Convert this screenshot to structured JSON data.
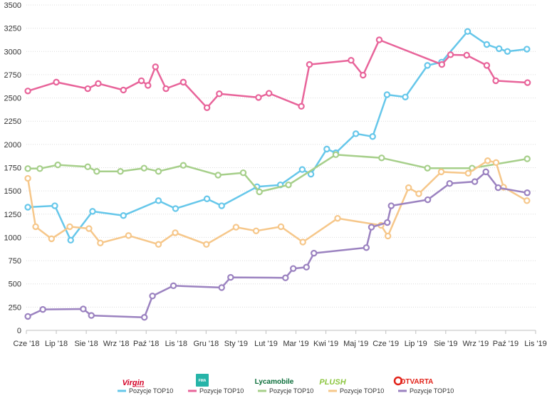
{
  "chart_data": {
    "type": "line",
    "ylim": [
      0,
      3500
    ],
    "yticks": [
      0,
      250,
      500,
      750,
      1000,
      1250,
      1500,
      1750,
      2000,
      2250,
      2500,
      2750,
      3000,
      3250,
      3500
    ],
    "xlim": [
      0,
      17
    ],
    "xticks": [
      {
        "label": "Cze '18",
        "x": 0
      },
      {
        "label": "Lip '18",
        "x": 1
      },
      {
        "label": "Sie '18",
        "x": 2
      },
      {
        "label": "Wrz '18",
        "x": 3
      },
      {
        "label": "Paź '18",
        "x": 4
      },
      {
        "label": "Lis '18",
        "x": 5
      },
      {
        "label": "Gru '18",
        "x": 6
      },
      {
        "label": "Sty '19",
        "x": 7
      },
      {
        "label": "Lut '19",
        "x": 8
      },
      {
        "label": "Mar '19",
        "x": 9
      },
      {
        "label": "Kwi '19",
        "x": 10
      },
      {
        "label": "Maj '19",
        "x": 11
      },
      {
        "label": "Cze '19",
        "x": 12
      },
      {
        "label": "Lip '19",
        "x": 13
      },
      {
        "label": "Sie '19",
        "x": 14
      },
      {
        "label": "Wrz '19",
        "x": 15
      },
      {
        "label": "Paź '19",
        "x": 16
      },
      {
        "label": "Lis '19",
        "x": 17
      }
    ],
    "grid": "horizontal",
    "legend_position": "bottom",
    "series": [
      {
        "name": "Pozycje TOP10",
        "brand": "Virgin mobile",
        "color": "#66c7ea",
        "x": [
          0.05,
          0.95,
          1.48,
          2.21,
          3.24,
          4.41,
          4.98,
          6.03,
          6.52,
          7.7,
          8.48,
          9.21,
          9.5,
          10.03,
          10.33,
          11.0,
          11.56,
          12.04,
          12.65,
          13.39,
          13.86,
          14.73,
          15.37,
          15.78,
          16.06,
          16.71
        ],
        "y": [
          1325,
          1340,
          970,
          1280,
          1235,
          1395,
          1310,
          1415,
          1340,
          1545,
          1565,
          1730,
          1680,
          1950,
          1910,
          2115,
          2085,
          2535,
          2510,
          2850,
          2885,
          3215,
          3075,
          3030,
          3000,
          3025
        ]
      },
      {
        "name": "Pozycje TOP10",
        "brand": "FMA Mobile",
        "color": "#e8649a",
        "x": [
          0.05,
          1.0,
          2.05,
          2.4,
          3.24,
          3.84,
          4.06,
          4.31,
          4.66,
          5.24,
          6.03,
          6.44,
          7.75,
          8.1,
          9.18,
          9.45,
          10.84,
          11.24,
          11.78,
          13.87,
          14.16,
          14.7,
          15.37,
          15.67,
          16.73
        ],
        "y": [
          2575,
          2670,
          2600,
          2655,
          2585,
          2685,
          2635,
          2835,
          2600,
          2670,
          2395,
          2545,
          2505,
          2550,
          2410,
          2860,
          2905,
          2745,
          3125,
          2860,
          2965,
          2960,
          2850,
          2685,
          2665
        ]
      },
      {
        "name": "Pozycje TOP10",
        "brand": "Lycamobile",
        "color": "#a6cf8a",
        "x": [
          0.05,
          0.45,
          1.05,
          2.05,
          2.35,
          3.14,
          3.93,
          4.41,
          5.24,
          6.4,
          7.24,
          7.78,
          8.75,
          10.33,
          11.86,
          13.39,
          14.88,
          16.72
        ],
        "y": [
          1740,
          1740,
          1780,
          1760,
          1710,
          1710,
          1745,
          1710,
          1775,
          1670,
          1695,
          1490,
          1565,
          1890,
          1855,
          1745,
          1745,
          1845
        ]
      },
      {
        "name": "Pozycje TOP10",
        "brand": "Plush",
        "color": "#f6c78a",
        "x": [
          0.05,
          0.31,
          0.84,
          1.45,
          2.09,
          2.47,
          3.41,
          4.41,
          4.97,
          6.01,
          7.0,
          7.67,
          8.5,
          9.23,
          10.39,
          11.84,
          12.07,
          12.76,
          13.1,
          13.85,
          14.75,
          15.4,
          15.68,
          15.93,
          16.71
        ],
        "y": [
          1635,
          1115,
          985,
          1115,
          1095,
          940,
          1020,
          925,
          1050,
          925,
          1110,
          1070,
          1115,
          950,
          1205,
          1130,
          1015,
          1535,
          1470,
          1705,
          1690,
          1825,
          1805,
          1540,
          1395
        ]
      },
      {
        "name": "Pozycje TOP10",
        "brand": "OTVARTA",
        "color": "#9b82c0",
        "x": [
          0.05,
          0.55,
          1.9,
          2.17,
          3.94,
          4.21,
          4.91,
          6.52,
          6.82,
          8.65,
          8.91,
          9.35,
          9.6,
          11.35,
          11.52,
          12.05,
          12.18,
          13.4,
          14.13,
          14.97,
          15.34,
          15.75,
          16.72
        ],
        "y": [
          150,
          225,
          230,
          160,
          140,
          370,
          480,
          460,
          570,
          565,
          665,
          680,
          830,
          890,
          1110,
          1160,
          1340,
          1405,
          1580,
          1600,
          1705,
          1535,
          1480
        ]
      }
    ]
  }
}
